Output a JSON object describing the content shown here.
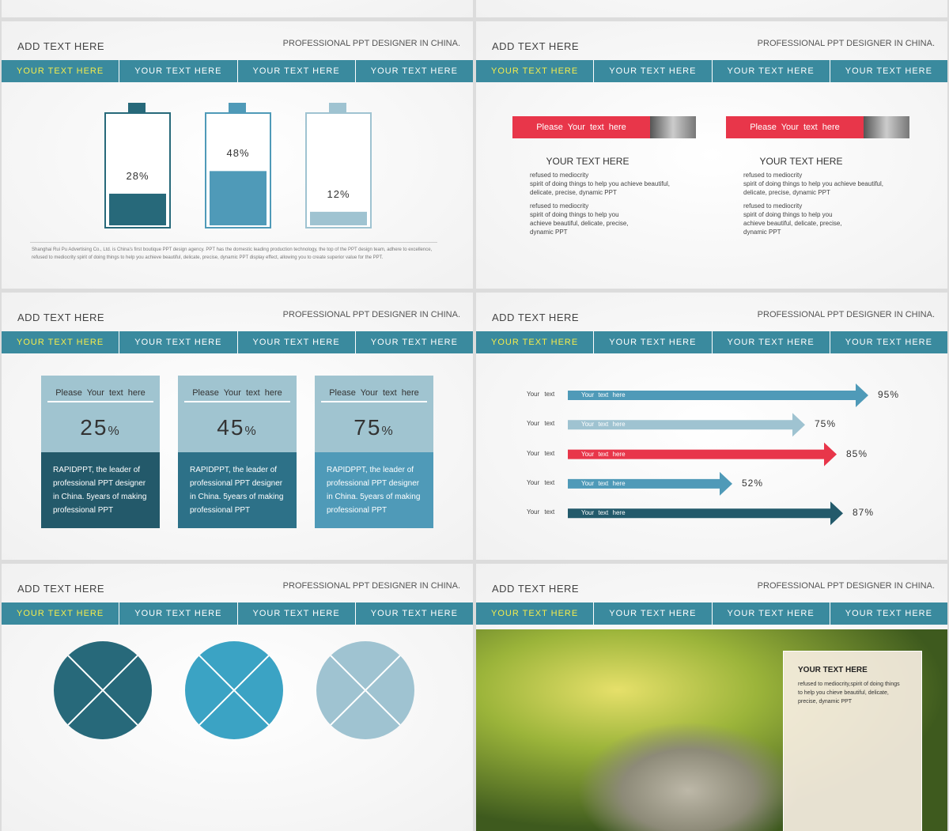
{
  "slides": [
    {
      "heading": "ADD TEXT HERE",
      "tagline": "PROFESSIONAL PPT DESIGNER IN CHINA.",
      "tabs": [
        "YOUR TEXT HERE",
        "YOUR TEXT HERE",
        "YOUR TEXT HERE",
        "YOUR TEXT HERE"
      ],
      "batteries": [
        {
          "value": 28,
          "label": "28%"
        },
        {
          "value": 48,
          "label": "48%"
        },
        {
          "value": 12,
          "label": "12%"
        }
      ],
      "footnote": "Shanghai Rui Pu Advertising Co., Ltd. is China's first boutique PPT design agency. PPT has the domestic leading production technology, the top of the PPT design team, adhere to excellence, refused to mediocrity spirit of doing things to help you achieve beautiful, delicate, precise, dynamic PPT display effect, allowing you to create superior value for the PPT."
    },
    {
      "heading": "ADD TEXT HERE",
      "tagline": "PROFESSIONAL PPT DESIGNER IN CHINA.",
      "tabs": [
        "YOUR TEXT HERE",
        "YOUR TEXT HERE",
        "YOUR TEXT HERE",
        "YOUR TEXT HERE"
      ],
      "columns": [
        {
          "banner": "Please Your text here",
          "title": "YOUR TEXT HERE",
          "paragraphs": [
            "refused to mediocrity\nspirit of doing things to help you achieve beautiful,\ndelicate, precise, dynamic PPT",
            "refused to mediocrity\nspirit of doing things to help you\nachieve beautiful, delicate, precise,\ndynamic PPT"
          ]
        },
        {
          "banner": "Please Your text here",
          "title": "YOUR TEXT HERE",
          "paragraphs": [
            "refused to mediocrity\nspirit of doing things to help you achieve beautiful,\ndelicate, precise, dynamic PPT",
            "refused to mediocrity\nspirit of doing things to help you\nachieve beautiful, delicate, precise,\ndynamic PPT"
          ]
        }
      ]
    },
    {
      "heading": "ADD TEXT HERE",
      "tagline": "PROFESSIONAL PPT DESIGNER IN CHINA.",
      "tabs": [
        "YOUR TEXT HERE",
        "YOUR TEXT HERE",
        "YOUR TEXT HERE",
        "YOUR TEXT HERE"
      ],
      "cards": [
        {
          "title": "Please Your text here",
          "value": 25,
          "unit": "%",
          "body": "RAPIDPPT, the leader of professional PPT designer in China. 5years of making professional PPT"
        },
        {
          "title": "Please Your text here",
          "value": 45,
          "unit": "%",
          "body": "RAPIDPPT, the leader of professional PPT designer in China. 5years of making professional PPT"
        },
        {
          "title": "Please Your text here",
          "value": 75,
          "unit": "%",
          "body": "RAPIDPPT, the leader of professional PPT designer in China. 5years of making professional PPT"
        }
      ]
    },
    {
      "heading": "ADD TEXT HERE",
      "tagline": "PROFESSIONAL PPT DESIGNER IN CHINA.",
      "tabs": [
        "YOUR TEXT HERE",
        "YOUR TEXT HERE",
        "YOUR TEXT HERE",
        "YOUR TEXT HERE"
      ],
      "arrows": [
        {
          "label": "Your text",
          "inner": "Your text here",
          "value": 95,
          "value_label": "95%",
          "color": "#4f9ab8"
        },
        {
          "label": "Your text",
          "inner": "Your text here",
          "value": 75,
          "value_label": "75%",
          "color": "#9fc3d1"
        },
        {
          "label": "Your text",
          "inner": "Your text here",
          "value": 85,
          "value_label": "85%",
          "color": "#e8364a"
        },
        {
          "label": "Your text",
          "inner": "Your text here",
          "value": 52,
          "value_label": "52%",
          "color": "#4f9ab8"
        },
        {
          "label": "Your text",
          "inner": "Your text here",
          "value": 87,
          "value_label": "87%",
          "color": "#235a6b"
        }
      ]
    },
    {
      "heading": "ADD TEXT HERE",
      "tagline": "PROFESSIONAL PPT DESIGNER IN CHINA.",
      "tabs": [
        "YOUR TEXT HERE",
        "YOUR TEXT HERE",
        "YOUR TEXT HERE",
        "YOUR TEXT HERE"
      ],
      "circles": [
        "#27697a",
        "#3ba3c4",
        "#9fc3d1"
      ]
    },
    {
      "heading": "ADD TEXT HERE",
      "tagline": "PROFESSIONAL PPT DESIGNER IN CHINA.",
      "tabs": [
        "YOUR TEXT HERE",
        "YOUR TEXT HERE",
        "YOUR TEXT HERE",
        "YOUR TEXT HERE"
      ],
      "photo_card": {
        "title": "YOUR TEXT HERE",
        "body": "refused to mediocrity,spirit of doing things to help you chieve beautiful, delicate, precise, dynamic PPT"
      }
    }
  ]
}
